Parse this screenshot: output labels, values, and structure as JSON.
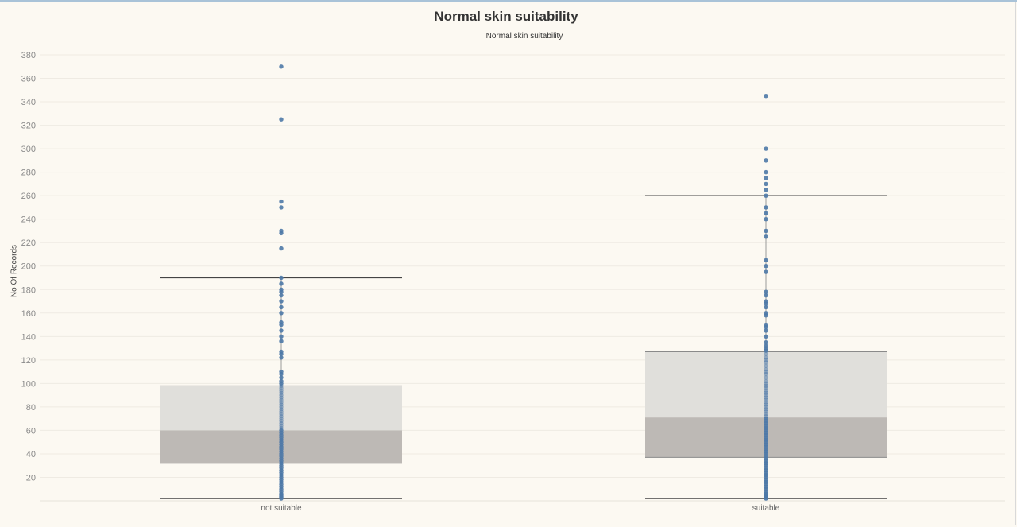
{
  "colors": {
    "background": "#fcf9f2",
    "point": "#4e79a7",
    "box_upper": "#e0dfdb",
    "box_lower": "#bdb9b5",
    "whisker": "#444444",
    "gridline": "#efebe3"
  },
  "chart_data": {
    "type": "box",
    "title": "Normal skin suitability",
    "subtitle": "Normal skin suitability",
    "xlabel": "",
    "ylabel": "No Of Records",
    "ylim": [
      0,
      380
    ],
    "yticks": [
      20,
      40,
      60,
      80,
      100,
      120,
      140,
      160,
      180,
      200,
      220,
      240,
      260,
      280,
      300,
      320,
      340,
      360,
      380
    ],
    "grid": true,
    "categories": [
      "not suitable",
      "suitable"
    ],
    "boxes": [
      {
        "category": "not suitable",
        "whisker_low": 2,
        "q1": 32,
        "median": 60,
        "q3": 98,
        "whisker_high": 190
      },
      {
        "category": "suitable",
        "whisker_low": 2,
        "q1": 37,
        "median": 71,
        "q3": 127,
        "whisker_high": 260
      }
    ],
    "points": [
      {
        "category": "not suitable",
        "values": [
          2,
          3,
          4,
          5,
          6,
          8,
          10,
          12,
          14,
          16,
          18,
          20,
          22,
          24,
          26,
          28,
          30,
          32,
          34,
          36,
          38,
          40,
          42,
          44,
          46,
          48,
          50,
          52,
          54,
          56,
          58,
          60,
          62,
          64,
          66,
          68,
          70,
          72,
          74,
          76,
          78,
          80,
          82,
          84,
          86,
          88,
          90,
          92,
          94,
          96,
          98,
          100,
          102,
          105,
          108,
          110,
          122,
          125,
          127,
          136,
          140,
          145,
          150,
          152,
          160,
          165,
          170,
          175,
          178,
          180,
          185,
          190,
          215,
          228,
          230,
          250,
          255,
          325,
          370
        ]
      },
      {
        "category": "suitable",
        "values": [
          2,
          3,
          4,
          5,
          6,
          8,
          10,
          12,
          14,
          16,
          18,
          20,
          22,
          24,
          26,
          28,
          30,
          32,
          34,
          36,
          38,
          40,
          42,
          44,
          46,
          48,
          50,
          52,
          54,
          56,
          58,
          60,
          62,
          64,
          66,
          68,
          70,
          72,
          74,
          76,
          78,
          80,
          82,
          84,
          86,
          88,
          90,
          92,
          94,
          96,
          98,
          100,
          102,
          105,
          108,
          110,
          112,
          115,
          118,
          120,
          122,
          125,
          128,
          130,
          132,
          135,
          140,
          145,
          148,
          150,
          158,
          160,
          165,
          168,
          170,
          175,
          178,
          195,
          200,
          205,
          225,
          230,
          240,
          245,
          250,
          260,
          265,
          270,
          275,
          280,
          290,
          300,
          345
        ]
      }
    ]
  }
}
